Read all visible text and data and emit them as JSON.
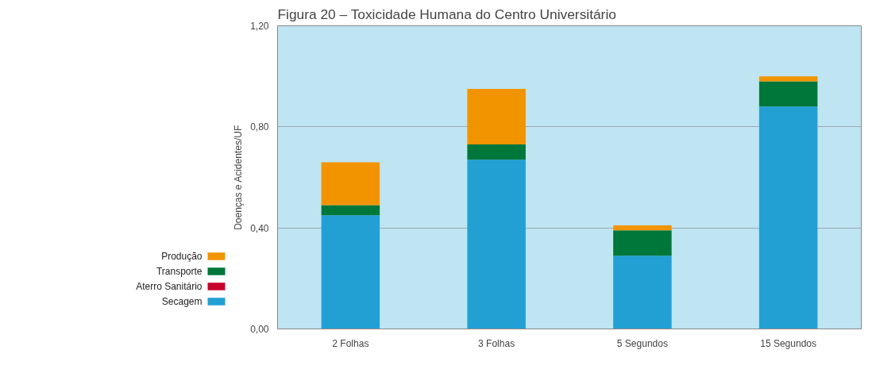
{
  "chart_data": {
    "type": "bar",
    "title": "Figura 20 – Toxicidade Humana do Centro Universitário",
    "ylabel": "Doenças e Acidentes/UF",
    "categories": [
      "2 Folhas",
      "3 Folhas",
      "5 Segundos",
      "15 Segundos"
    ],
    "series": [
      {
        "name": "Secagem",
        "color": "#22a0d4",
        "values": [
          0.45,
          0.67,
          0.29,
          0.88
        ]
      },
      {
        "name": "Aterro Sanitário",
        "color": "#c8002a",
        "values": [
          0,
          0,
          0,
          0
        ]
      },
      {
        "name": "Transporte",
        "color": "#00773a",
        "values": [
          0.04,
          0.06,
          0.1,
          0.1
        ]
      },
      {
        "name": "Produção",
        "color": "#f29400",
        "values": [
          0.17,
          0.22,
          0.02,
          0.02
        ]
      }
    ],
    "stacked": true,
    "ylim": [
      0,
      1.2
    ],
    "yticks": [
      {
        "value": 0,
        "label": "0,00"
      },
      {
        "value": 0.4,
        "label": "0,40"
      },
      {
        "value": 0.8,
        "label": "0,80"
      },
      {
        "value": 1.2,
        "label": "1,20"
      }
    ],
    "grid": "y",
    "legend": "left"
  }
}
